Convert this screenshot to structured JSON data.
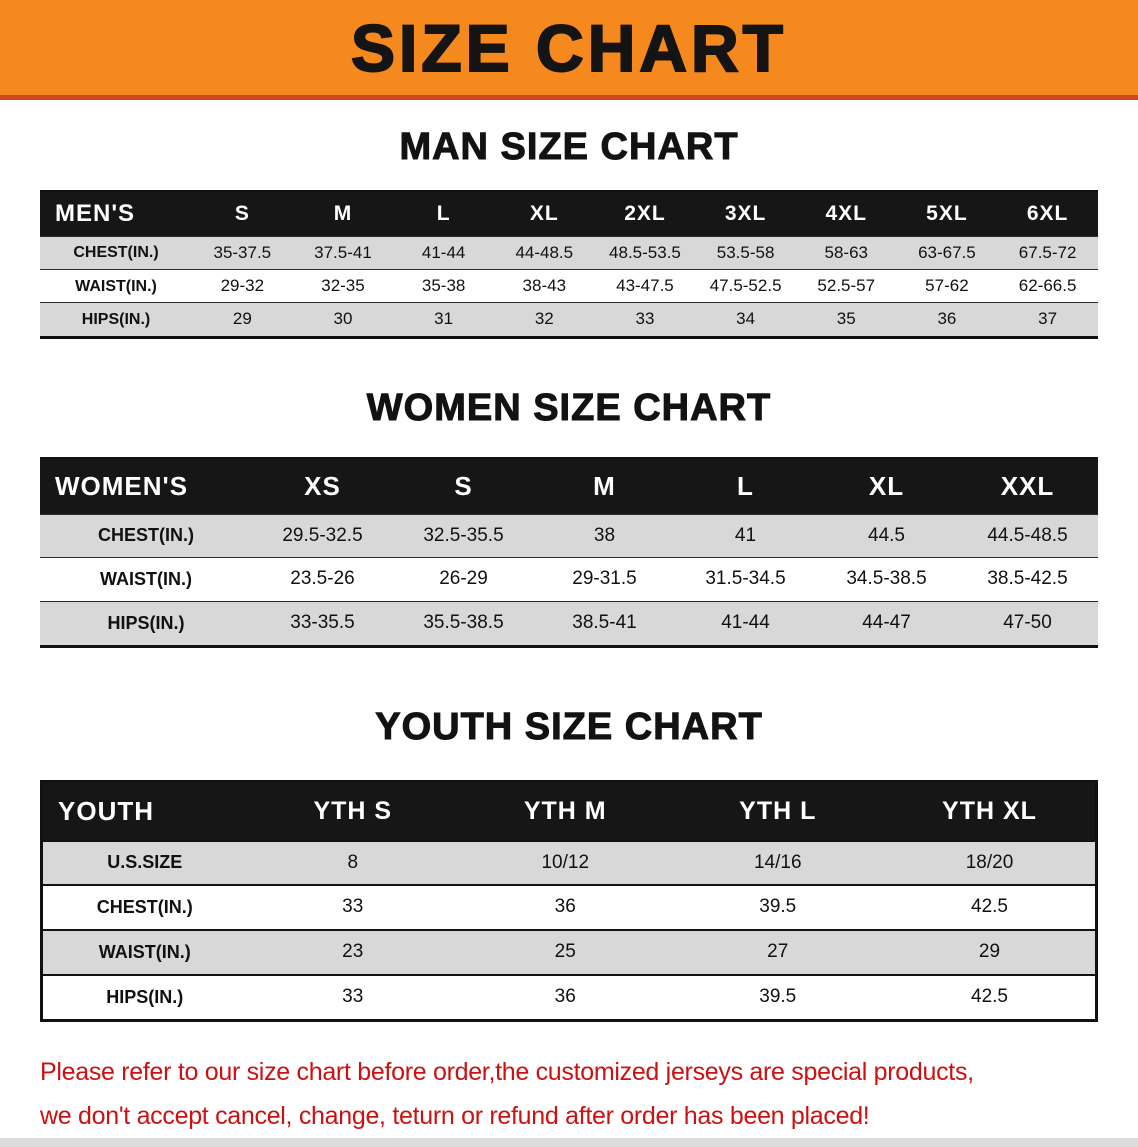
{
  "banner": {
    "title": "SIZE CHART",
    "bg_color": "#F6891E",
    "accent_color": "#CE4A1B"
  },
  "sections": [
    {
      "id": "men",
      "heading": "MAN SIZE CHART",
      "table": {
        "header": [
          "MEN'S",
          "S",
          "M",
          "L",
          "XL",
          "2XL",
          "3XL",
          "4XL",
          "5XL",
          "6XL"
        ],
        "rows": [
          [
            "CHEST(IN.)",
            "35-37.5",
            "37.5-41",
            "41-44",
            "44-48.5",
            "48.5-53.5",
            "53.5-58",
            "58-63",
            "63-67.5",
            "67.5-72"
          ],
          [
            "WAIST(IN.)",
            "29-32",
            "32-35",
            "35-38",
            "38-43",
            "43-47.5",
            "47.5-52.5",
            "52.5-57",
            "57-62",
            "62-66.5"
          ],
          [
            "HIPS(IN.)",
            "29",
            "30",
            "31",
            "32",
            "33",
            "34",
            "35",
            "36",
            "37"
          ]
        ]
      }
    },
    {
      "id": "women",
      "heading": "WOMEN SIZE CHART",
      "table": {
        "header": [
          "WOMEN'S",
          "XS",
          "S",
          "M",
          "L",
          "XL",
          "XXL"
        ],
        "rows": [
          [
            "CHEST(IN.)",
            "29.5-32.5",
            "32.5-35.5",
            "38",
            "41",
            "44.5",
            "44.5-48.5"
          ],
          [
            "WAIST(IN.)",
            "23.5-26",
            "26-29",
            "29-31.5",
            "31.5-34.5",
            "34.5-38.5",
            "38.5-42.5"
          ],
          [
            "HIPS(IN.)",
            "33-35.5",
            "35.5-38.5",
            "38.5-41",
            "41-44",
            "44-47",
            "47-50"
          ]
        ]
      }
    },
    {
      "id": "youth",
      "heading": "YOUTH SIZE CHART",
      "table": {
        "header": [
          "YOUTH",
          "YTH S",
          "YTH M",
          "YTH L",
          "YTH XL"
        ],
        "rows": [
          [
            "U.S.SIZE",
            "8",
            "10/12",
            "14/16",
            "18/20"
          ],
          [
            "CHEST(IN.)",
            "33",
            "36",
            "39.5",
            "42.5"
          ],
          [
            "WAIST(IN.)",
            "23",
            "25",
            "27",
            "29"
          ],
          [
            "HIPS(IN.)",
            "33",
            "36",
            "39.5",
            "42.5"
          ]
        ]
      }
    }
  ],
  "disclaimer": {
    "line1": "Please refer to our size chart before order,the customized jerseys are special products,",
    "line2": "we don't accept cancel, change, teturn or refund after order has been placed!",
    "color": "#CB1111"
  },
  "chart_data": [
    {
      "type": "table",
      "title": "MAN SIZE CHART",
      "columns": [
        "MEN'S",
        "S",
        "M",
        "L",
        "XL",
        "2XL",
        "3XL",
        "4XL",
        "5XL",
        "6XL"
      ],
      "rows": [
        [
          "CHEST(IN.)",
          "35-37.5",
          "37.5-41",
          "41-44",
          "44-48.5",
          "48.5-53.5",
          "53.5-58",
          "58-63",
          "63-67.5",
          "67.5-72"
        ],
        [
          "WAIST(IN.)",
          "29-32",
          "32-35",
          "35-38",
          "38-43",
          "43-47.5",
          "47.5-52.5",
          "52.5-57",
          "57-62",
          "62-66.5"
        ],
        [
          "HIPS(IN.)",
          "29",
          "30",
          "31",
          "32",
          "33",
          "34",
          "35",
          "36",
          "37"
        ]
      ]
    },
    {
      "type": "table",
      "title": "WOMEN SIZE CHART",
      "columns": [
        "WOMEN'S",
        "XS",
        "S",
        "M",
        "L",
        "XL",
        "XXL"
      ],
      "rows": [
        [
          "CHEST(IN.)",
          "29.5-32.5",
          "32.5-35.5",
          "38",
          "41",
          "44.5",
          "44.5-48.5"
        ],
        [
          "WAIST(IN.)",
          "23.5-26",
          "26-29",
          "29-31.5",
          "31.5-34.5",
          "34.5-38.5",
          "38.5-42.5"
        ],
        [
          "HIPS(IN.)",
          "33-35.5",
          "35.5-38.5",
          "38.5-41",
          "41-44",
          "44-47",
          "47-50"
        ]
      ]
    },
    {
      "type": "table",
      "title": "YOUTH SIZE CHART",
      "columns": [
        "YOUTH",
        "YTH S",
        "YTH M",
        "YTH L",
        "YTH XL"
      ],
      "rows": [
        [
          "U.S.SIZE",
          "8",
          "10/12",
          "14/16",
          "18/20"
        ],
        [
          "CHEST(IN.)",
          "33",
          "36",
          "39.5",
          "42.5"
        ],
        [
          "WAIST(IN.)",
          "23",
          "25",
          "27",
          "29"
        ],
        [
          "HIPS(IN.)",
          "33",
          "36",
          "39.5",
          "42.5"
        ]
      ]
    }
  ]
}
